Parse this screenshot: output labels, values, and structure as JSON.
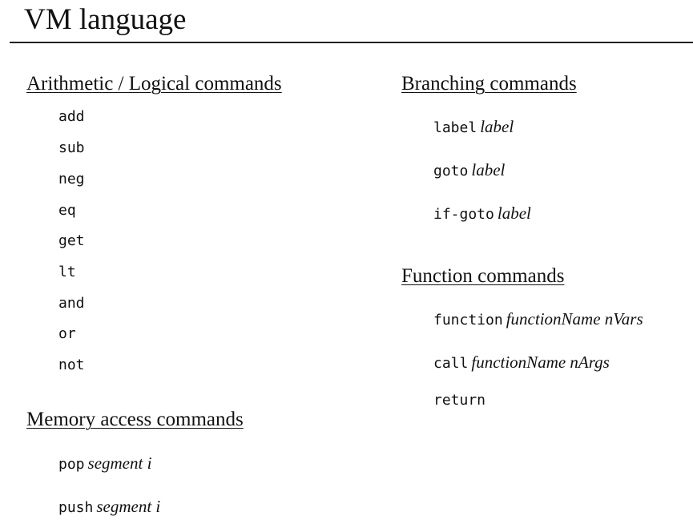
{
  "title": "VM language",
  "arithmetic": {
    "heading": "Arithmetic / Logical commands",
    "commands": [
      "add",
      "sub",
      "neg",
      "eq",
      "get",
      "lt",
      "and",
      "or",
      "not"
    ]
  },
  "memory": {
    "heading": "Memory access commands",
    "commands": [
      {
        "keyword": "pop",
        "args": "segment i"
      },
      {
        "keyword": "push",
        "args": "segment i"
      }
    ]
  },
  "branching": {
    "heading": "Branching commands",
    "commands": [
      {
        "keyword": "label",
        "args": "label"
      },
      {
        "keyword": "goto",
        "args": "label"
      },
      {
        "keyword": "if-goto",
        "args": "label"
      }
    ]
  },
  "function": {
    "heading": "Function commands",
    "commands": [
      {
        "keyword": "function",
        "args": "functionName nVars"
      },
      {
        "keyword": "call",
        "args": "functionName nArgs"
      },
      {
        "keyword": "return",
        "args": ""
      }
    ]
  }
}
